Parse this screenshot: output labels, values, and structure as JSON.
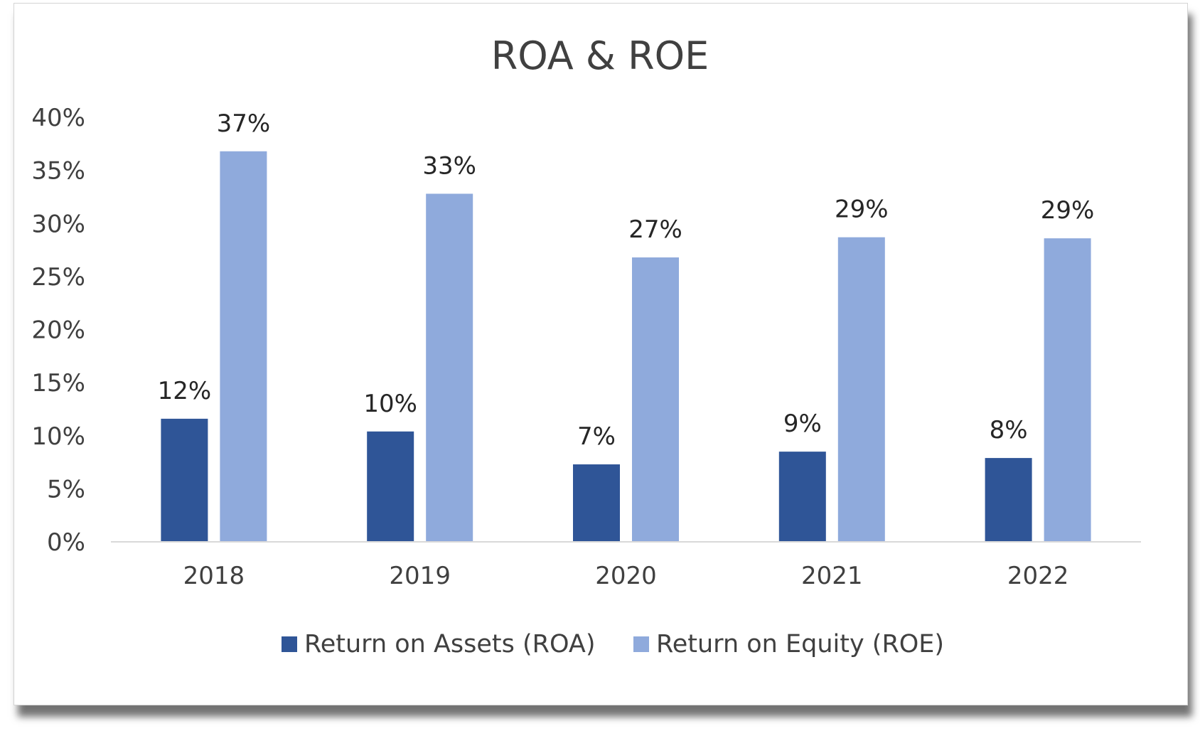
{
  "chart_data": {
    "type": "bar",
    "title": "ROA & ROE",
    "categories": [
      "2018",
      "2019",
      "2020",
      "2021",
      "2022"
    ],
    "series": [
      {
        "name": "Return on Assets (ROA)",
        "color": "#2f5597",
        "values": [
          0.116,
          0.104,
          0.073,
          0.085,
          0.079
        ],
        "labels": [
          "12%",
          "10%",
          "7%",
          "9%",
          "8%"
        ]
      },
      {
        "name": "Return on Equity (ROE)",
        "color": "#8faadc",
        "values": [
          0.368,
          0.328,
          0.268,
          0.287,
          0.286
        ],
        "labels": [
          "37%",
          "33%",
          "27%",
          "29%",
          "29%"
        ]
      }
    ],
    "y_ticks": [
      "0%",
      "5%",
      "10%",
      "15%",
      "20%",
      "25%",
      "30%",
      "35%",
      "40%"
    ],
    "ylim": [
      0,
      0.4
    ],
    "xlabel": "",
    "ylabel": "",
    "grid": false,
    "legend_position": "bottom"
  }
}
